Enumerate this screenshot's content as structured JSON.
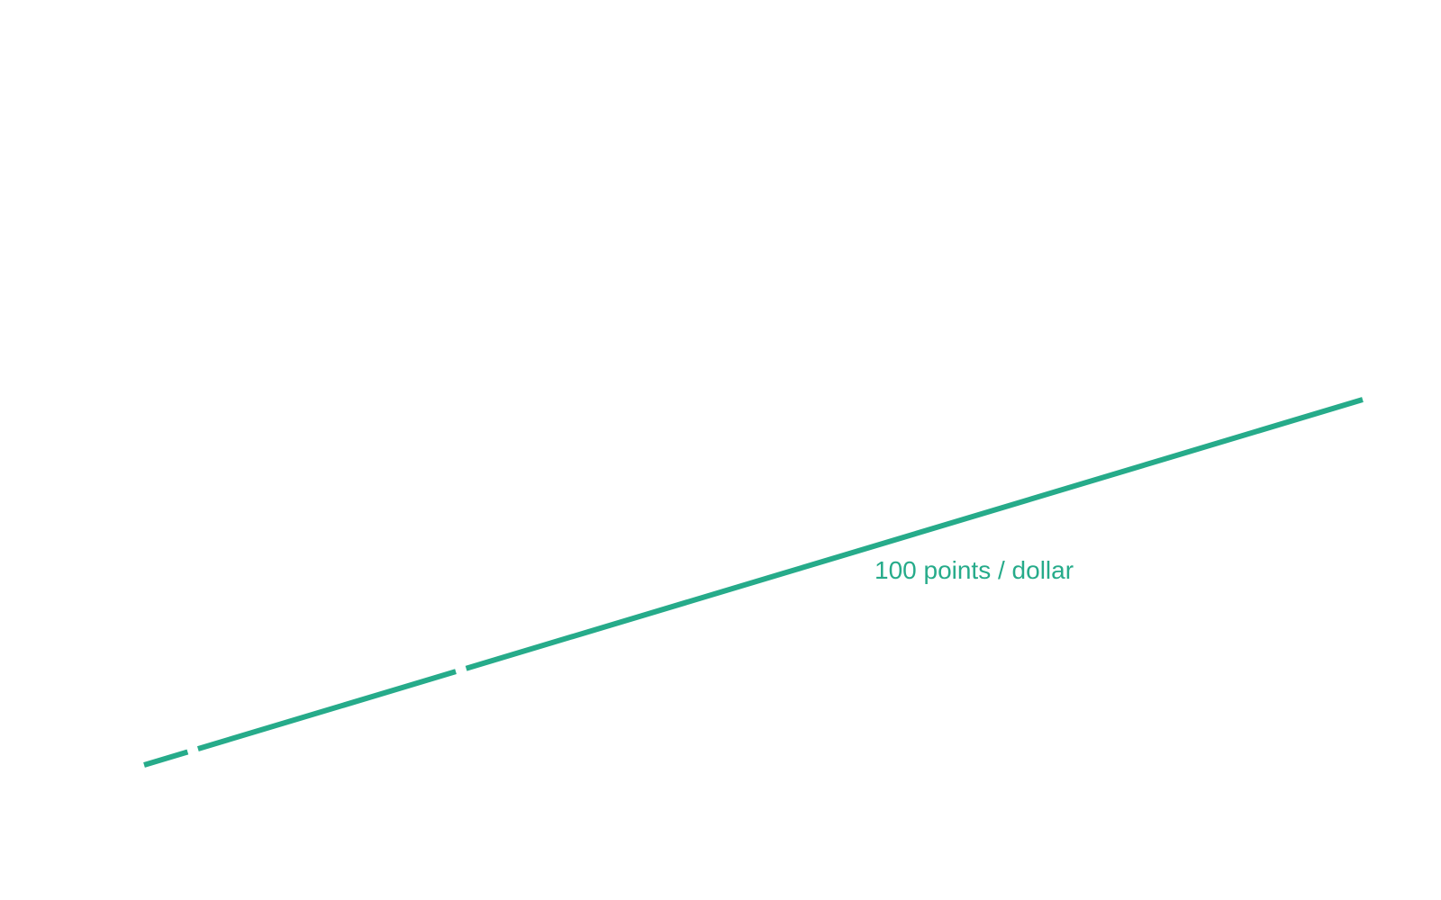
{
  "chart_data": {
    "type": "line",
    "series": [
      {
        "name": "100 points / dollar",
        "color": "#26ab8a",
        "x": [
          0,
          1
        ],
        "y": [
          0,
          1
        ]
      }
    ],
    "gaps_on_line": [
      0.04,
      0.26
    ],
    "legend": "inline label below line",
    "grid": false,
    "axes_visible": false
  }
}
